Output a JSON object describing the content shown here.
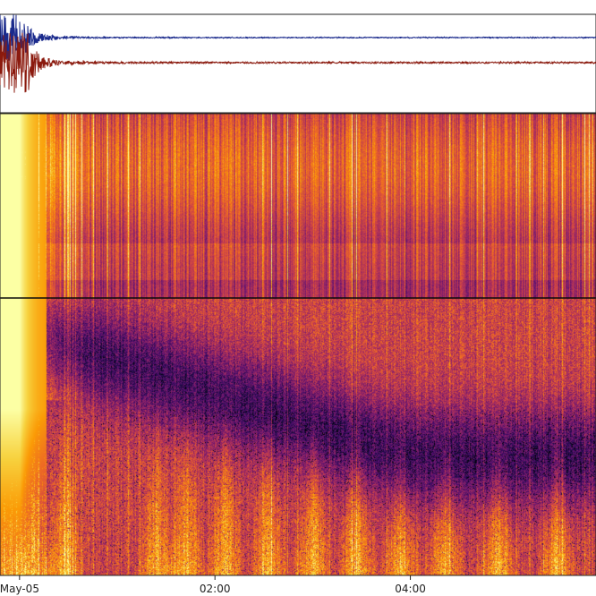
{
  "chart_data": [
    {
      "type": "line",
      "panel": "waveform",
      "series": [
        {
          "color": "#1a2a8c",
          "peak_time_h": 0.05,
          "envelope": [
            [
              0.0,
              1.0
            ],
            [
              0.05,
              1.0
            ],
            [
              0.1,
              0.55
            ],
            [
              0.2,
              0.22
            ],
            [
              0.35,
              0.09
            ],
            [
              0.6,
              0.04
            ],
            [
              1.0,
              0.025
            ],
            [
              2.0,
              0.02
            ],
            [
              3.0,
              0.02
            ],
            [
              4.0,
              0.02
            ],
            [
              5.9,
              0.02
            ]
          ]
        },
        {
          "color": "#8b1a0e",
          "peak_time_h": 0.05,
          "envelope": [
            [
              0.0,
              1.0
            ],
            [
              0.08,
              1.0
            ],
            [
              0.15,
              0.5
            ],
            [
              0.25,
              0.2
            ],
            [
              0.4,
              0.08
            ],
            [
              0.7,
              0.04
            ],
            [
              1.0,
              0.03
            ],
            [
              2.0,
              0.025
            ],
            [
              3.0,
              0.025
            ],
            [
              4.0,
              0.025
            ],
            [
              5.9,
              0.025
            ]
          ]
        }
      ],
      "xlim": [
        -0.2,
        5.9
      ],
      "grid": false
    },
    {
      "type": "heatmap",
      "panel": "spectrogram",
      "colormap": [
        "#000004",
        "#1b0c41",
        "#4a0c6b",
        "#781c6d",
        "#a52c60",
        "#cf4446",
        "#ed6925",
        "#fb9b06",
        "#f7d13d",
        "#fcffa4"
      ],
      "xlim": [
        -0.2,
        5.9
      ],
      "x_ticks": [
        {
          "value": 0,
          "label": "May-05"
        },
        {
          "value": 2,
          "label": "02:00"
        },
        {
          "value": 4,
          "label": "04:00"
        }
      ],
      "divider_line": true,
      "description_levels": {
        "onset_time_h": 0.0,
        "bright_band_top": 0.92,
        "dark_trough_center_h": 4.0,
        "bursts_h": [
          -0.1,
          0.15,
          0.45,
          1.4,
          1.7,
          2.1,
          2.55,
          3.0,
          3.45,
          3.9,
          4.35,
          4.9,
          5.5
        ]
      }
    }
  ]
}
